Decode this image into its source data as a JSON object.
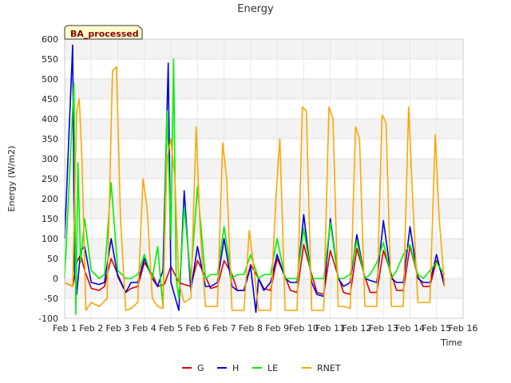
{
  "chart_data": {
    "type": "line",
    "title": "Energy",
    "xlabel": "Time",
    "ylabel": "Energy (W/m2)",
    "badge": "BA_processed",
    "xlim": [
      1,
      16
    ],
    "ylim": [
      -100,
      600
    ],
    "x_ticks": [
      {
        "value": 1,
        "label": "Feb 1"
      },
      {
        "value": 2,
        "label": "Feb 2"
      },
      {
        "value": 3,
        "label": "Feb 3"
      },
      {
        "value": 4,
        "label": "Feb 4"
      },
      {
        "value": 5,
        "label": "Feb 5"
      },
      {
        "value": 6,
        "label": "Feb 6"
      },
      {
        "value": 7,
        "label": "Feb 7"
      },
      {
        "value": 8,
        "label": "Feb 8"
      },
      {
        "value": 9,
        "label": "Feb 9"
      },
      {
        "value": 10,
        "label": "Feb 10"
      },
      {
        "value": 11,
        "label": "Feb 11"
      },
      {
        "value": 12,
        "label": "Feb 12"
      },
      {
        "value": 13,
        "label": "Feb 13"
      },
      {
        "value": 14,
        "label": "Feb 14"
      },
      {
        "value": 15,
        "label": "Feb 15"
      },
      {
        "value": 16,
        "label": "Feb 16"
      }
    ],
    "y_ticks": [
      -100,
      -50,
      0,
      50,
      100,
      150,
      200,
      250,
      300,
      350,
      400,
      450,
      500,
      550,
      600
    ],
    "grid": true,
    "legend_position": "bottom",
    "series": [
      {
        "name": "G",
        "color": "#dd0000",
        "x": [
          1.0,
          1.3,
          1.45,
          1.6,
          1.75,
          2.0,
          2.3,
          2.5,
          2.75,
          3.0,
          3.3,
          3.5,
          3.75,
          4.0,
          4.3,
          4.5,
          4.75,
          5.0,
          5.3,
          5.5,
          5.75,
          6.0,
          6.3,
          6.5,
          6.75,
          7.0,
          7.3,
          7.5,
          7.75,
          8.0,
          8.3,
          8.5,
          8.75,
          9.0,
          9.3,
          9.5,
          9.75,
          10.0,
          10.3,
          10.5,
          10.75,
          11.0,
          11.3,
          11.5,
          11.75,
          12.0,
          12.3,
          12.5,
          12.75,
          13.0,
          13.3,
          13.5,
          13.75,
          14.0,
          14.3,
          14.5,
          14.75,
          15.0,
          15.3
        ],
        "y": [
          -10,
          -20,
          40,
          60,
          20,
          -25,
          -30,
          -20,
          50,
          10,
          -35,
          -25,
          -20,
          40,
          10,
          -20,
          -15,
          30,
          -10,
          -15,
          -20,
          45,
          5,
          -25,
          -20,
          45,
          10,
          -30,
          -30,
          35,
          0,
          -25,
          -30,
          50,
          5,
          -30,
          -35,
          85,
          10,
          -35,
          -40,
          70,
          5,
          -35,
          -40,
          75,
          5,
          -35,
          -35,
          70,
          10,
          -30,
          -30,
          80,
          5,
          -20,
          -20,
          45,
          -5
        ]
      },
      {
        "name": "H",
        "color": "#0000dd",
        "x": [
          1.0,
          1.3,
          1.37,
          1.45,
          1.6,
          1.75,
          2.0,
          2.3,
          2.5,
          2.75,
          3.0,
          3.3,
          3.5,
          3.75,
          4.0,
          4.3,
          4.5,
          4.7,
          4.9,
          5.0,
          5.3,
          5.5,
          5.75,
          6.0,
          6.3,
          6.5,
          6.75,
          7.0,
          7.3,
          7.5,
          7.75,
          8.0,
          8.2,
          8.3,
          8.5,
          8.75,
          9.0,
          9.3,
          9.5,
          9.75,
          10.0,
          10.3,
          10.5,
          10.75,
          11.0,
          11.3,
          11.5,
          11.75,
          12.0,
          12.3,
          12.5,
          12.75,
          13.0,
          13.3,
          13.5,
          13.75,
          14.0,
          14.3,
          14.5,
          14.75,
          15.0,
          15.3
        ],
        "y": [
          100,
          585,
          20,
          -40,
          70,
          80,
          -10,
          -15,
          -10,
          100,
          5,
          -35,
          -10,
          -10,
          50,
          0,
          -20,
          20,
          540,
          -10,
          -80,
          220,
          -30,
          80,
          -20,
          -20,
          -10,
          100,
          -20,
          -30,
          -30,
          30,
          -85,
          0,
          -30,
          -10,
          60,
          0,
          -10,
          -10,
          160,
          -10,
          -40,
          -45,
          150,
          0,
          -20,
          -10,
          110,
          0,
          -5,
          -10,
          145,
          0,
          -10,
          -10,
          130,
          0,
          -10,
          -10,
          60,
          -20
        ]
      },
      {
        "name": "LE",
        "color": "#00ee00",
        "x": [
          1.0,
          1.35,
          1.42,
          1.5,
          1.6,
          1.75,
          2.0,
          2.3,
          2.5,
          2.75,
          3.0,
          3.3,
          3.5,
          3.75,
          4.0,
          4.3,
          4.5,
          4.7,
          4.85,
          5.0,
          5.1,
          5.2,
          5.3,
          5.5,
          5.75,
          6.0,
          6.3,
          6.5,
          6.75,
          7.0,
          7.3,
          7.5,
          7.75,
          8.0,
          8.3,
          8.5,
          8.75,
          9.0,
          9.3,
          9.5,
          9.75,
          10.0,
          10.3,
          10.5,
          10.75,
          11.0,
          11.3,
          11.5,
          11.75,
          12.0,
          12.3,
          12.5,
          12.75,
          13.0,
          13.3,
          13.5,
          13.75,
          14.0,
          14.3,
          14.5,
          14.75,
          15.0,
          15.3
        ],
        "y": [
          0,
          490,
          -90,
          290,
          40,
          150,
          20,
          0,
          10,
          240,
          20,
          0,
          0,
          10,
          60,
          0,
          80,
          -70,
          420,
          100,
          550,
          0,
          -50,
          180,
          0,
          230,
          0,
          10,
          10,
          130,
          0,
          10,
          10,
          60,
          0,
          10,
          10,
          100,
          0,
          0,
          0,
          125,
          0,
          0,
          0,
          140,
          0,
          0,
          10,
          95,
          0,
          10,
          40,
          90,
          0,
          20,
          60,
          85,
          10,
          0,
          20,
          40,
          10
        ]
      },
      {
        "name": "RNET",
        "color": "#ffa500",
        "x": [
          1.0,
          1.3,
          1.45,
          1.55,
          1.65,
          1.8,
          2.0,
          2.3,
          2.6,
          2.8,
          2.95,
          3.1,
          3.3,
          3.5,
          3.75,
          3.95,
          4.1,
          4.3,
          4.5,
          4.7,
          4.85,
          5.0,
          5.15,
          5.3,
          5.5,
          5.75,
          5.95,
          6.1,
          6.3,
          6.5,
          6.75,
          6.95,
          7.1,
          7.3,
          7.5,
          7.75,
          7.95,
          8.1,
          8.3,
          8.5,
          8.75,
          8.95,
          9.1,
          9.3,
          9.5,
          9.75,
          9.95,
          10.1,
          10.3,
          10.5,
          10.75,
          10.95,
          11.1,
          11.3,
          11.5,
          11.75,
          11.95,
          12.1,
          12.3,
          12.5,
          12.75,
          12.95,
          13.1,
          13.3,
          13.5,
          13.75,
          13.95,
          14.1,
          14.3,
          14.5,
          14.75,
          14.95,
          15.1,
          15.3
        ],
        "y": [
          -10,
          -20,
          420,
          450,
          300,
          -80,
          -60,
          -70,
          -50,
          520,
          530,
          150,
          -80,
          -75,
          -60,
          250,
          180,
          -50,
          -70,
          -75,
          300,
          350,
          250,
          -10,
          -60,
          -50,
          380,
          120,
          -70,
          -70,
          -70,
          340,
          250,
          -80,
          -80,
          -80,
          120,
          40,
          -80,
          -80,
          -80,
          200,
          350,
          -80,
          -80,
          -80,
          430,
          420,
          -80,
          -80,
          -80,
          430,
          400,
          -70,
          -70,
          -75,
          380,
          350,
          -70,
          -70,
          -70,
          410,
          390,
          -70,
          -70,
          -70,
          430,
          200,
          -60,
          -60,
          -60,
          360,
          150,
          -20
        ]
      }
    ]
  }
}
